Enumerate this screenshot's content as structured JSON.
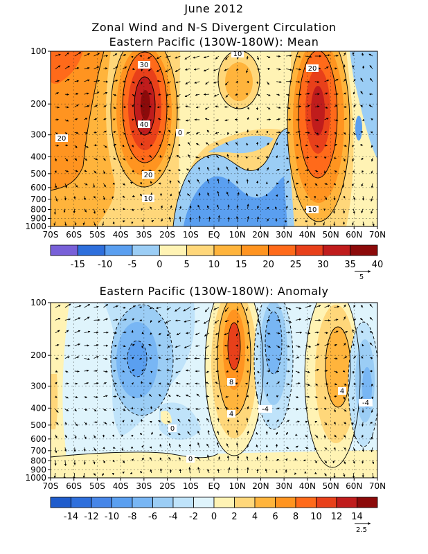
{
  "header": {
    "date_title": "June 2012",
    "main_title": "Zonal Wind and N-S Divergent Circulation"
  },
  "chart_data": [
    {
      "type": "heatmap",
      "title": "Eastern Pacific (130W-180W): Mean",
      "x_ticks": [
        "70S",
        "60S",
        "50S",
        "40S",
        "30S",
        "20S",
        "10S",
        "EQ",
        "10N",
        "20N",
        "30N",
        "40N",
        "50N",
        "60N",
        "70N"
      ],
      "y_ticks": [
        "100",
        "200",
        "300",
        "400",
        "500",
        "600",
        "700",
        "800",
        "900",
        "1000"
      ],
      "y_scale": "log pressure",
      "colorbar_ticks": [
        "-15",
        "-10",
        "-5",
        "0",
        "5",
        "10",
        "15",
        "20",
        "25",
        "30",
        "35",
        "40"
      ],
      "colorbar_colors": [
        "#7860d8",
        "#2e6fdc",
        "#5a9ff0",
        "#9bcdf5",
        "#fff3b4",
        "#ffd77a",
        "#ffb43c",
        "#ff9420",
        "#ff6a1a",
        "#e8401a",
        "#c01c1c",
        "#8c0a0a"
      ],
      "vector_reference": "5",
      "contour_labels": [
        "30",
        "40",
        "10",
        "20",
        "0",
        "20",
        "10",
        "20",
        "10"
      ]
    },
    {
      "type": "heatmap",
      "title": "Eastern Pacific (130W-180W): Anomaly",
      "x_ticks": [
        "70S",
        "60S",
        "50S",
        "40S",
        "30S",
        "20S",
        "10S",
        "EQ",
        "10N",
        "20N",
        "30N",
        "40N",
        "50N",
        "60N",
        "70N"
      ],
      "y_ticks": [
        "100",
        "200",
        "300",
        "400",
        "500",
        "600",
        "700",
        "800",
        "900",
        "1000"
      ],
      "y_scale": "log pressure",
      "colorbar_ticks": [
        "-14",
        "-12",
        "-10",
        "-8",
        "-6",
        "-4",
        "-2",
        "0",
        "2",
        "4",
        "6",
        "8",
        "10",
        "12",
        "14"
      ],
      "colorbar_colors": [
        "#1f5ccc",
        "#2e6fdc",
        "#4786e8",
        "#5a9ff0",
        "#78b6f4",
        "#9bcdf5",
        "#bfe3fa",
        "#dff4fc",
        "#fff3b4",
        "#ffd77a",
        "#ffb43c",
        "#ff9420",
        "#ff6a1a",
        "#e8401a",
        "#c01c1c",
        "#8c0a0a"
      ],
      "vector_reference": "2.5",
      "contour_labels": [
        "8",
        "4",
        "-4",
        "0",
        "0",
        "4",
        "-4"
      ]
    }
  ]
}
